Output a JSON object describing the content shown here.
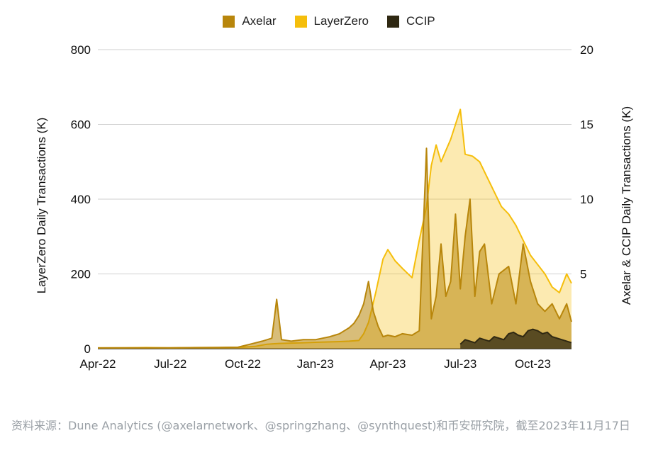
{
  "source_note": "资料来源：Dune Analytics (@axelarnetwork、@springzhang、@synthquest)和币安研究院，截至2023年11月17日",
  "chart_data": {
    "type": "area",
    "title": "",
    "ylabel_left": "LayerZero Daily Transactions (K)",
    "ylabel_right": "Axelar & CCIP Daily Transactions (K)",
    "ylim_left": [
      0,
      800
    ],
    "ylim_right": [
      0,
      20
    ],
    "yticks_left": [
      "0",
      "200",
      "400",
      "600",
      "800"
    ],
    "yticks_right": [
      "5",
      "10",
      "15",
      "20"
    ],
    "xticks": [
      "Apr-22",
      "Jul-22",
      "Oct-22",
      "Jan-23",
      "Apr-23",
      "Jul-23",
      "Oct-23"
    ],
    "x_range_months": [
      0,
      19.6
    ],
    "grid": true,
    "legend_position": "top-center",
    "series": [
      {
        "name": "Axelar",
        "axis": "right",
        "color": "#b8860b",
        "x": [
          0,
          1,
          2,
          3,
          4,
          5,
          5.8,
          6.3,
          6.8,
          7.2,
          7.4,
          7.6,
          8.0,
          8.5,
          9.0,
          9.3,
          9.6,
          9.8,
          10.0,
          10.2,
          10.4,
          10.6,
          10.8,
          11.0,
          11.2,
          11.4,
          11.6,
          11.8,
          12.0,
          12.3,
          12.6,
          13.0,
          13.3,
          13.6,
          13.8,
          14.0,
          14.2,
          14.4,
          14.6,
          14.8,
          15.0,
          15.2,
          15.4,
          15.6,
          15.8,
          16.0,
          16.3,
          16.6,
          17.0,
          17.3,
          17.6,
          17.9,
          18.2,
          18.5,
          18.8,
          19.1,
          19.4,
          19.6
        ],
        "values": [
          0.05,
          0.06,
          0.05,
          0.06,
          0.07,
          0.08,
          0.1,
          0.3,
          0.5,
          0.7,
          3.3,
          0.6,
          0.5,
          0.6,
          0.6,
          0.7,
          0.8,
          0.9,
          1.0,
          1.2,
          1.4,
          1.7,
          2.2,
          3.0,
          4.5,
          2.5,
          1.5,
          0.8,
          0.9,
          0.8,
          1.0,
          0.9,
          1.2,
          13.4,
          2.0,
          3.5,
          7.0,
          3.5,
          4.5,
          9.0,
          4.0,
          7.5,
          10.0,
          3.5,
          6.5,
          7.0,
          3.0,
          5.0,
          5.5,
          3.0,
          7.0,
          4.5,
          3.0,
          2.5,
          3.0,
          2.0,
          3.0,
          1.8
        ]
      },
      {
        "name": "LayerZero",
        "axis": "left",
        "color": "#f5be0b",
        "x": [
          0,
          1,
          2,
          3,
          4,
          5,
          6,
          6.5,
          7,
          7.5,
          8,
          8.5,
          9,
          9.5,
          10,
          10.4,
          10.8,
          11.0,
          11.2,
          11.5,
          11.8,
          12.0,
          12.3,
          12.6,
          13.0,
          13.3,
          13.6,
          13.8,
          14.0,
          14.2,
          14.4,
          14.6,
          14.8,
          15.0,
          15.2,
          15.5,
          15.8,
          16.1,
          16.4,
          16.7,
          17.0,
          17.3,
          17.6,
          17.9,
          18.2,
          18.5,
          18.8,
          19.1,
          19.4,
          19.6
        ],
        "values": [
          2,
          2,
          3,
          2,
          3,
          3,
          4,
          6,
          12,
          14,
          15,
          16,
          17,
          18,
          19,
          20,
          22,
          40,
          70,
          150,
          240,
          265,
          235,
          215,
          190,
          290,
          380,
          490,
          545,
          500,
          530,
          560,
          600,
          640,
          520,
          515,
          500,
          460,
          420,
          380,
          360,
          330,
          290,
          250,
          225,
          200,
          165,
          150,
          200,
          175
        ]
      },
      {
        "name": "CCIP",
        "axis": "right",
        "color": "#2f2812",
        "x": [
          15.0,
          15.2,
          15.4,
          15.6,
          15.8,
          16.0,
          16.2,
          16.4,
          16.6,
          16.8,
          17.0,
          17.2,
          17.4,
          17.6,
          17.8,
          18.0,
          18.2,
          18.4,
          18.6,
          18.8,
          19.0,
          19.2,
          19.4,
          19.6
        ],
        "values": [
          0.3,
          0.6,
          0.5,
          0.4,
          0.7,
          0.6,
          0.5,
          0.8,
          0.7,
          0.6,
          1.0,
          1.1,
          0.9,
          0.8,
          1.2,
          1.3,
          1.2,
          1.0,
          1.1,
          0.8,
          0.7,
          0.6,
          0.5,
          0.4
        ]
      }
    ]
  }
}
